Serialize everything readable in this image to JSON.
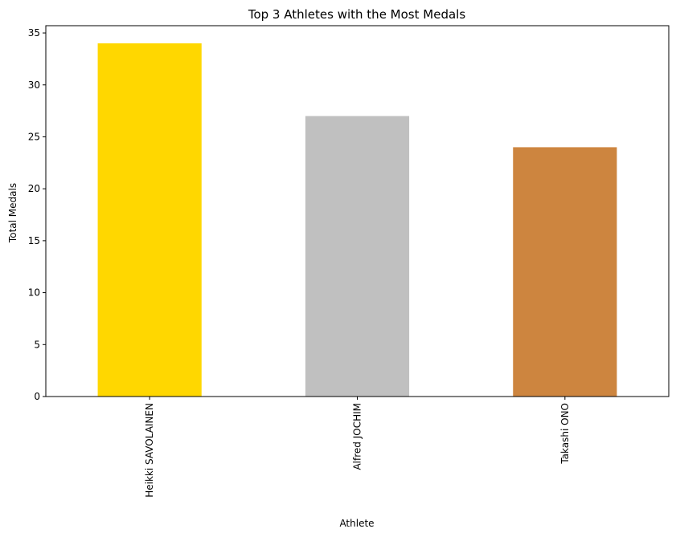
{
  "chart_data": {
    "type": "bar",
    "title": "Top 3 Athletes with the Most Medals",
    "xlabel": "Athlete",
    "ylabel": "Total Medals",
    "categories": [
      "Heikki SAVOLAINEN",
      "Alfred JOCHIM",
      "Takashi ONO"
    ],
    "values": [
      34,
      27,
      24
    ],
    "colors": [
      "#FFD700",
      "#C0C0C0",
      "#CD853F"
    ],
    "ylim": [
      0,
      35.7
    ],
    "yticks": [
      0,
      5,
      10,
      15,
      20,
      25,
      30,
      35
    ],
    "grid": false,
    "legend": "none"
  }
}
